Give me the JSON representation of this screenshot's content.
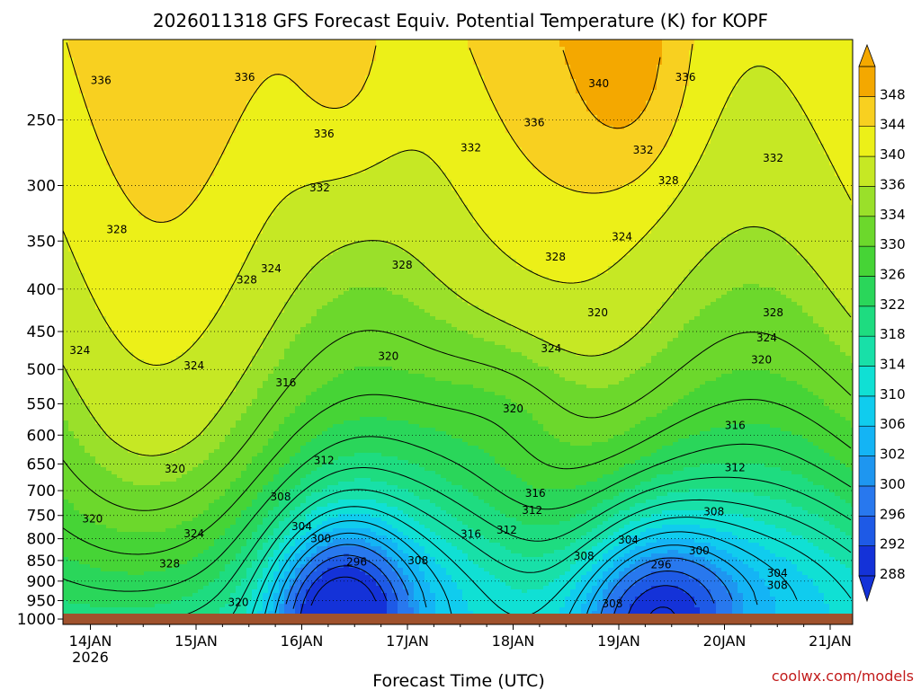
{
  "chart_data": {
    "type": "heatmap",
    "title": "2026011318 GFS Forecast Equiv. Potential Temperature (K) for KOPF",
    "xlabel": "Forecast Time (UTC)",
    "ylabel": "",
    "x_tick_labels": [
      "14JAN",
      "15JAN",
      "16JAN",
      "17JAN",
      "18JAN",
      "19JAN",
      "20JAN",
      "21JAN"
    ],
    "x_tick_sublabel": "2026",
    "y_tick_labels": [
      "250",
      "300",
      "350",
      "400",
      "450",
      "500",
      "550",
      "600",
      "650",
      "700",
      "750",
      "800",
      "850",
      "900",
      "950",
      "1000"
    ],
    "y_axis_scale": "log-pressure, inverted (1000 at bottom)",
    "ylim": [
      1015,
      200
    ],
    "colorbar": {
      "levels": [
        "288",
        "292",
        "296",
        "300",
        "302",
        "306",
        "310",
        "314",
        "318",
        "322",
        "326",
        "330",
        "334",
        "336",
        "340",
        "344",
        "348"
      ],
      "colors": [
        "#1432d8",
        "#1e5ae6",
        "#2878ee",
        "#1e96f0",
        "#14b4f5",
        "#10ccee",
        "#10e0d4",
        "#18e0a8",
        "#1edc80",
        "#2ad65a",
        "#46d436",
        "#6cd82c",
        "#9ae02a",
        "#c6e824",
        "#ecf018",
        "#f8d020",
        "#f4a800"
      ],
      "extend": "both"
    },
    "contour_labels": [
      {
        "text": "336",
        "x": 0.3,
        "p": 224
      },
      {
        "text": "336",
        "x": 1.66,
        "p": 222
      },
      {
        "text": "336",
        "x": 2.41,
        "p": 260
      },
      {
        "text": "336",
        "x": 4.4,
        "p": 252
      },
      {
        "text": "340",
        "x": 5.01,
        "p": 226
      },
      {
        "text": "336",
        "x": 5.83,
        "p": 222
      },
      {
        "text": "332",
        "x": 2.37,
        "p": 302
      },
      {
        "text": "332",
        "x": 3.8,
        "p": 270
      },
      {
        "text": "332",
        "x": 5.43,
        "p": 272
      },
      {
        "text": "332",
        "x": 6.66,
        "p": 278
      },
      {
        "text": "328",
        "x": 5.67,
        "p": 296
      },
      {
        "text": "328",
        "x": 0.45,
        "p": 339
      },
      {
        "text": "328",
        "x": 1.68,
        "p": 390
      },
      {
        "text": "324",
        "x": 1.91,
        "p": 378
      },
      {
        "text": "328",
        "x": 3.15,
        "p": 374
      },
      {
        "text": "328",
        "x": 4.6,
        "p": 366
      },
      {
        "text": "324",
        "x": 5.23,
        "p": 346
      },
      {
        "text": "320",
        "x": 5.0,
        "p": 427
      },
      {
        "text": "328",
        "x": 6.66,
        "p": 427
      },
      {
        "text": "324",
        "x": 6.6,
        "p": 458
      },
      {
        "text": "324",
        "x": 0.1,
        "p": 474
      },
      {
        "text": "320",
        "x": 3.02,
        "p": 482
      },
      {
        "text": "324",
        "x": 4.56,
        "p": 472
      },
      {
        "text": "320",
        "x": 6.55,
        "p": 487
      },
      {
        "text": "324",
        "x": 1.18,
        "p": 495
      },
      {
        "text": "316",
        "x": 2.05,
        "p": 519
      },
      {
        "text": "320",
        "x": 4.2,
        "p": 558
      },
      {
        "text": "316",
        "x": 6.3,
        "p": 584
      },
      {
        "text": "320",
        "x": 1.0,
        "p": 659
      },
      {
        "text": "312",
        "x": 2.41,
        "p": 644
      },
      {
        "text": "312",
        "x": 6.3,
        "p": 657
      },
      {
        "text": "308",
        "x": 2.0,
        "p": 712
      },
      {
        "text": "316",
        "x": 4.41,
        "p": 705
      },
      {
        "text": "312",
        "x": 4.38,
        "p": 739
      },
      {
        "text": "308",
        "x": 6.1,
        "p": 742
      },
      {
        "text": "320",
        "x": 0.22,
        "p": 757
      },
      {
        "text": "304",
        "x": 2.2,
        "p": 773
      },
      {
        "text": "300",
        "x": 2.38,
        "p": 800
      },
      {
        "text": "324",
        "x": 1.18,
        "p": 789
      },
      {
        "text": "316",
        "x": 3.8,
        "p": 790
      },
      {
        "text": "312",
        "x": 4.14,
        "p": 781
      },
      {
        "text": "304",
        "x": 5.29,
        "p": 803
      },
      {
        "text": "300",
        "x": 5.96,
        "p": 827
      },
      {
        "text": "328",
        "x": 0.95,
        "p": 858
      },
      {
        "text": "296",
        "x": 2.72,
        "p": 853
      },
      {
        "text": "308",
        "x": 3.3,
        "p": 850
      },
      {
        "text": "308",
        "x": 4.87,
        "p": 840
      },
      {
        "text": "296",
        "x": 5.6,
        "p": 860
      },
      {
        "text": "304",
        "x": 6.7,
        "p": 880
      },
      {
        "text": "308",
        "x": 6.7,
        "p": 911
      },
      {
        "text": "320",
        "x": 1.6,
        "p": 955
      },
      {
        "text": "308",
        "x": 5.14,
        "p": 958
      }
    ],
    "grid": "dotted horizontal lines at each pressure tick",
    "legend": "vertical colorbar at right"
  },
  "credit": "coolwx.com/models"
}
